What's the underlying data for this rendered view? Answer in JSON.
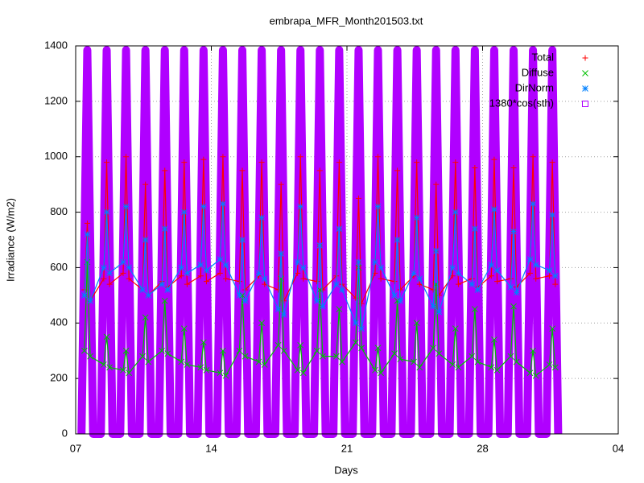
{
  "chart_data": {
    "type": "line",
    "title": "embrapa_MFR_Month201503.txt",
    "x_label": "Days",
    "y_label": "Irradiance (W/m2)",
    "xlim": [
      7,
      35
    ],
    "xticks": [
      {
        "value": 7,
        "label": "07"
      },
      14,
      21,
      28,
      {
        "value": 35,
        "label": "04"
      }
    ],
    "ylim": [
      0,
      1400
    ],
    "yticks": [
      0,
      200,
      400,
      600,
      800,
      1000,
      1200,
      1400
    ],
    "grid": true,
    "legend": "top-right",
    "series": [
      {
        "name": "Total",
        "color": "#ff0000",
        "marker": "plus",
        "x": [
          7.45,
          7.6,
          7.75,
          8.45,
          8.6,
          8.75,
          9.45,
          9.6,
          9.75,
          10.45,
          10.6,
          10.75,
          11.45,
          11.6,
          11.75,
          12.45,
          12.6,
          12.75,
          13.45,
          13.6,
          13.75,
          14.45,
          14.6,
          14.75,
          15.45,
          15.6,
          15.75,
          16.45,
          16.6,
          16.75,
          17.45,
          17.6,
          17.75,
          18.45,
          18.6,
          18.75,
          19.45,
          19.6,
          19.75,
          20.45,
          20.6,
          20.75,
          21.45,
          21.6,
          21.75,
          22.45,
          22.6,
          22.75,
          23.45,
          23.6,
          23.75,
          24.45,
          24.6,
          24.75,
          25.45,
          25.6,
          25.75,
          26.45,
          26.6,
          26.75,
          27.45,
          27.6,
          27.75,
          28.45,
          28.6,
          28.75,
          29.45,
          29.6,
          29.75,
          30.45,
          30.6,
          30.75,
          31.45,
          31.6,
          31.75
        ],
        "values": [
          520,
          760,
          480,
          560,
          980,
          540,
          580,
          1000,
          560,
          520,
          900,
          500,
          550,
          950,
          530,
          570,
          980,
          540,
          570,
          990,
          550,
          580,
          1000,
          560,
          550,
          950,
          520,
          570,
          980,
          540,
          520,
          900,
          480,
          580,
          1000,
          560,
          550,
          950,
          520,
          570,
          980,
          540,
          490,
          850,
          470,
          580,
          1000,
          560,
          550,
          950,
          520,
          570,
          980,
          540,
          520,
          900,
          500,
          570,
          980,
          540,
          560,
          960,
          530,
          570,
          990,
          550,
          560,
          960,
          530,
          580,
          1000,
          560,
          570,
          980,
          540
        ]
      },
      {
        "name": "Diffuse",
        "color": "#00c000",
        "marker": "cross",
        "x": [
          7.45,
          7.6,
          7.75,
          8.45,
          8.6,
          8.75,
          9.45,
          9.6,
          9.75,
          10.45,
          10.6,
          10.75,
          11.45,
          11.6,
          11.75,
          12.45,
          12.6,
          12.75,
          13.45,
          13.6,
          13.75,
          14.45,
          14.6,
          14.75,
          15.45,
          15.6,
          15.75,
          16.45,
          16.6,
          16.75,
          17.45,
          17.6,
          17.75,
          18.45,
          18.6,
          18.75,
          19.45,
          19.6,
          19.75,
          20.45,
          20.6,
          20.75,
          21.45,
          21.6,
          21.75,
          22.45,
          22.6,
          22.75,
          23.45,
          23.6,
          23.75,
          24.45,
          24.6,
          24.75,
          25.45,
          25.6,
          25.75,
          26.45,
          26.6,
          26.75,
          27.45,
          27.6,
          27.75,
          28.45,
          28.6,
          28.75,
          29.45,
          29.6,
          29.75,
          30.45,
          30.6,
          30.75,
          31.45,
          31.6,
          31.75
        ],
        "values": [
          300,
          620,
          280,
          250,
          350,
          240,
          230,
          300,
          220,
          280,
          420,
          260,
          300,
          480,
          290,
          260,
          380,
          250,
          240,
          330,
          230,
          220,
          300,
          210,
          300,
          500,
          280,
          260,
          400,
          250,
          320,
          560,
          300,
          230,
          320,
          220,
          300,
          520,
          280,
          280,
          450,
          260,
          330,
          600,
          310,
          230,
          310,
          220,
          290,
          480,
          270,
          260,
          400,
          240,
          310,
          540,
          290,
          250,
          380,
          240,
          280,
          450,
          260,
          240,
          340,
          230,
          280,
          460,
          260,
          220,
          300,
          210,
          250,
          380,
          240
        ]
      },
      {
        "name": "DirNorm",
        "color": "#0080ff",
        "marker": "star",
        "x": [
          7.45,
          7.6,
          7.75,
          8.45,
          8.6,
          8.75,
          9.45,
          9.6,
          9.75,
          10.45,
          10.6,
          10.75,
          11.45,
          11.6,
          11.75,
          12.45,
          12.6,
          12.75,
          13.45,
          13.6,
          13.75,
          14.45,
          14.6,
          14.75,
          15.45,
          15.6,
          15.75,
          16.45,
          16.6,
          16.75,
          17.45,
          17.6,
          17.75,
          18.45,
          18.6,
          18.75,
          19.45,
          19.6,
          19.75,
          20.45,
          20.6,
          20.75,
          21.45,
          21.6,
          21.75,
          22.45,
          22.6,
          22.75,
          23.45,
          23.6,
          23.75,
          24.45,
          24.6,
          24.75,
          25.45,
          25.6,
          25.75,
          26.45,
          26.6,
          26.75,
          27.45,
          27.6,
          27.75,
          28.45,
          28.6,
          28.75,
          29.45,
          29.6,
          29.75,
          30.45,
          30.6,
          30.75,
          31.45,
          31.6,
          31.75
        ],
        "values": [
          500,
          720,
          480,
          600,
          800,
          580,
          620,
          820,
          600,
          520,
          700,
          500,
          540,
          740,
          520,
          600,
          800,
          580,
          610,
          820,
          590,
          630,
          830,
          610,
          500,
          700,
          480,
          580,
          780,
          560,
          450,
          650,
          430,
          620,
          820,
          600,
          480,
          680,
          460,
          540,
          740,
          520,
          400,
          620,
          380,
          620,
          820,
          600,
          500,
          700,
          480,
          580,
          780,
          560,
          460,
          660,
          440,
          600,
          800,
          580,
          540,
          740,
          520,
          610,
          810,
          590,
          530,
          730,
          510,
          630,
          830,
          610,
          590,
          790,
          570
        ]
      },
      {
        "name": "1380*cos(sth)",
        "color": "#b000ff",
        "marker": "square",
        "x": [
          7.3,
          7.45,
          7.6,
          7.75,
          7.9,
          8.3,
          8.45,
          8.6,
          8.75,
          8.9,
          9.3,
          9.45,
          9.6,
          9.75,
          9.9,
          10.3,
          10.45,
          10.6,
          10.75,
          10.9,
          11.3,
          11.45,
          11.6,
          11.75,
          11.9,
          12.3,
          12.45,
          12.6,
          12.75,
          12.9,
          13.3,
          13.45,
          13.6,
          13.75,
          13.9,
          14.3,
          14.45,
          14.6,
          14.75,
          14.9,
          15.3,
          15.45,
          15.6,
          15.75,
          15.9,
          16.3,
          16.45,
          16.6,
          16.75,
          16.9,
          17.3,
          17.45,
          17.6,
          17.75,
          17.9,
          18.3,
          18.45,
          18.6,
          18.75,
          18.9,
          19.3,
          19.45,
          19.6,
          19.75,
          19.9,
          20.3,
          20.45,
          20.6,
          20.75,
          20.9,
          21.3,
          21.45,
          21.6,
          21.75,
          21.9,
          22.3,
          22.45,
          22.6,
          22.75,
          22.9,
          23.3,
          23.45,
          23.6,
          23.75,
          23.9,
          24.3,
          24.45,
          24.6,
          24.75,
          24.9,
          25.3,
          25.45,
          25.6,
          25.75,
          25.9,
          26.3,
          26.45,
          26.6,
          26.75,
          26.9,
          27.3,
          27.45,
          27.6,
          27.75,
          27.9,
          28.3,
          28.45,
          28.6,
          28.75,
          28.9,
          29.3,
          29.45,
          29.6,
          29.75,
          29.9,
          30.3,
          30.45,
          30.6,
          30.75,
          30.9,
          31.3,
          31.45,
          31.6,
          31.75,
          31.9
        ],
        "values": [
          0,
          690,
          1385,
          690,
          0,
          0,
          690,
          1385,
          690,
          0,
          0,
          690,
          1385,
          690,
          0,
          0,
          690,
          1385,
          690,
          0,
          0,
          690,
          1385,
          690,
          0,
          0,
          690,
          1385,
          690,
          0,
          0,
          690,
          1385,
          690,
          0,
          0,
          690,
          1385,
          690,
          0,
          0,
          690,
          1385,
          690,
          0,
          0,
          690,
          1385,
          690,
          0,
          0,
          690,
          1385,
          690,
          0,
          0,
          690,
          1385,
          690,
          0,
          0,
          690,
          1385,
          690,
          0,
          0,
          690,
          1385,
          690,
          0,
          0,
          690,
          1385,
          690,
          0,
          0,
          690,
          1385,
          690,
          0,
          0,
          690,
          1385,
          690,
          0,
          0,
          690,
          1385,
          690,
          0,
          0,
          690,
          1385,
          690,
          0,
          0,
          690,
          1385,
          690,
          0,
          0,
          690,
          1385,
          690,
          0,
          0,
          690,
          1385,
          690,
          0,
          0,
          690,
          1385,
          690,
          0,
          0,
          690,
          1385,
          690,
          0,
          0,
          690,
          1385,
          690,
          0
        ]
      }
    ]
  }
}
